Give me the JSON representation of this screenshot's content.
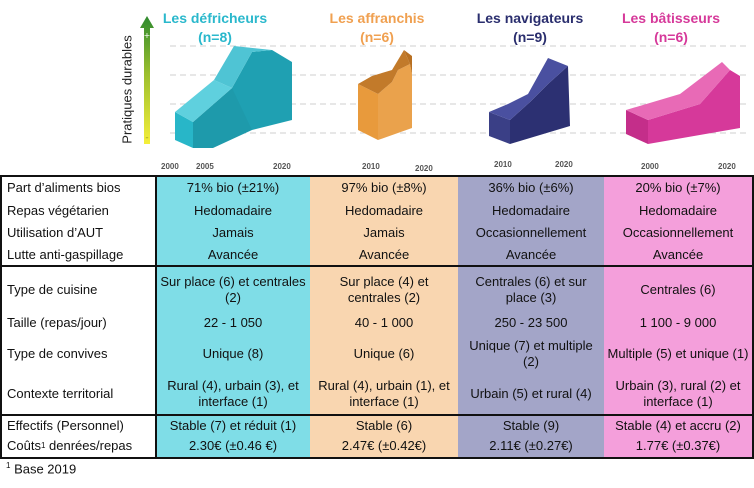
{
  "y_axis_label": "Pratiques durables",
  "groups": [
    {
      "name": "Les défricheurs",
      "n": "(n=8)",
      "color": "#2AB8CC",
      "years": [
        "2000",
        "2005",
        "2020"
      ]
    },
    {
      "name": "Les affranchis",
      "n": "(n=6)",
      "color": "#F0A050",
      "years": [
        "2010",
        "2020"
      ]
    },
    {
      "name": "Les navigateurs",
      "n": "(n=9)",
      "color": "#2A2E6E",
      "years": [
        "2010",
        "2020"
      ]
    },
    {
      "name": "Les bâtisseurs",
      "n": "(n=6)",
      "color": "#D6399A",
      "years": [
        "2000",
        "2020"
      ]
    }
  ],
  "colors": {
    "col1": "#7FDDE7",
    "col2": "#F9D6B0",
    "col3": "#A3A5C8",
    "col4": "#F49FDB"
  },
  "rows": [
    {
      "label": "Part d’aliments bios",
      "values": [
        "71% bio (±21%)",
        "97% bio (±8%)",
        "36% bio (±6%)",
        "20% bio (±7%)"
      ]
    },
    {
      "label": "Repas végétarien",
      "values": [
        "Hedomadaire",
        "Hedomadaire",
        "Hedomadaire",
        "Hedomadaire"
      ]
    },
    {
      "label": "Utilisation d’AUT",
      "values": [
        "Jamais",
        "Jamais",
        "Occasionnellement",
        "Occasionnellement"
      ]
    },
    {
      "label": "Lutte anti-gaspillage",
      "values": [
        "Avancée",
        "Avancée",
        "Avancée",
        "Avancée"
      ]
    },
    {
      "label": "Type de cuisine",
      "values": [
        "Sur place (6) et centrales (2)",
        "Sur place (4) et centrales (2)",
        "Centrales (6) et sur place (3)",
        "Centrales (6)"
      ]
    },
    {
      "label": "Taille (repas/jour)",
      "values": [
        "22 - 1 050",
        "40 - 1 000",
        "250 - 23 500",
        "1 100 - 9 000"
      ]
    },
    {
      "label": "Type de convives",
      "values": [
        "Unique (8)",
        "Unique (6)",
        "Unique (7) et multiple (2)",
        "Multiple (5) et unique (1)"
      ]
    },
    {
      "label": "Contexte territorial",
      "values": [
        "Rural (4), urbain (3), et interface (1)",
        "Rural (4), urbain (1), et interface (1)",
        "Urbain (5) et rural (4)",
        "Urbain (3), rural (2) et interface (1)"
      ]
    },
    {
      "label": "Effectifs (Personnel)",
      "values": [
        "Stable (7) et réduit (1)",
        "Stable (6)",
        "Stable (9)",
        "Stable (4) et accru (2)"
      ]
    },
    {
      "label_main": "Coûts",
      "label_sup": "1",
      "label_rest": " denrées/repas",
      "values": [
        "2.30€ (±0.46 €)",
        "2.47€ (±0.42€)",
        "2.11€ (±0.27€)",
        "1.77€ (±0.37€)"
      ]
    }
  ],
  "footnote": {
    "sup": "1",
    "text": " Base 2019"
  }
}
